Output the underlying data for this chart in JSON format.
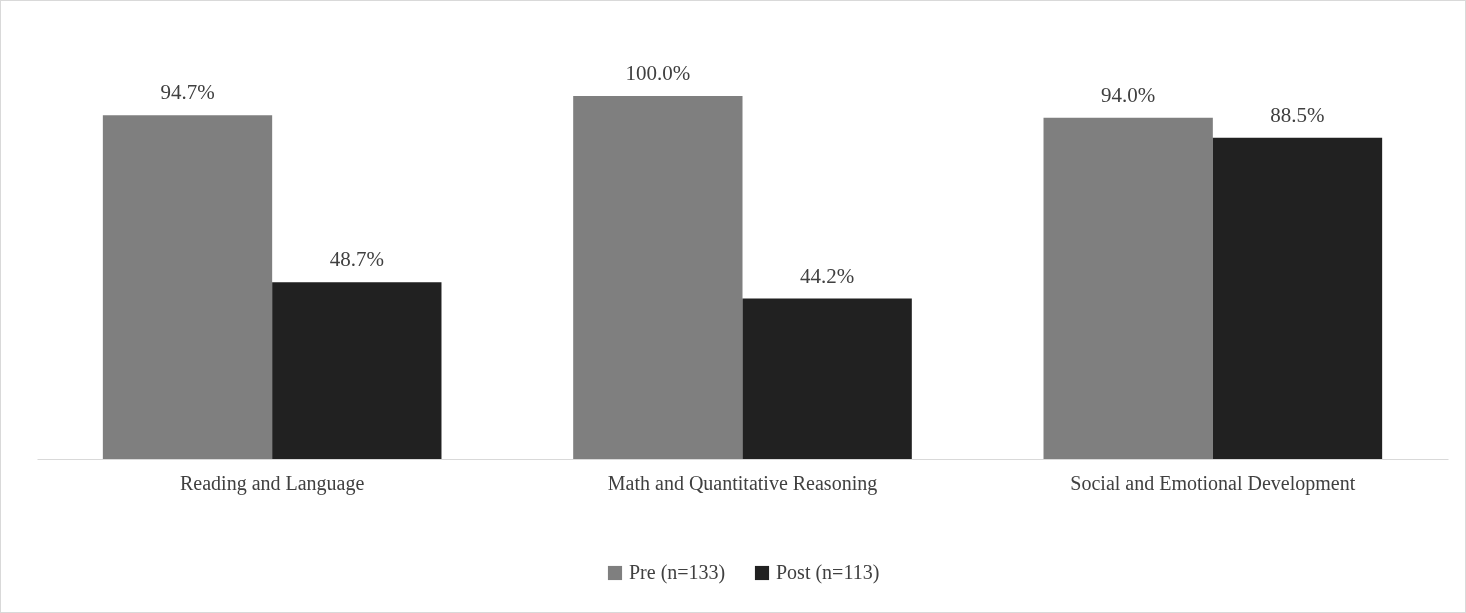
{
  "chart_data": {
    "type": "bar",
    "categories": [
      "Reading and Language",
      "Math and Quantitative Reasoning",
      "Social and Emotional Development"
    ],
    "series": [
      {
        "name": "Pre (n=133)",
        "color": "#7f7f7f",
        "values": [
          94.7,
          100.0,
          94.0
        ],
        "value_labels": [
          "94.7%",
          "100.0%",
          "94.0%"
        ]
      },
      {
        "name": "Post (n=113)",
        "color": "#212121",
        "values": [
          48.7,
          44.2,
          88.5
        ],
        "value_labels": [
          "48.7%",
          "44.2%",
          "88.5%"
        ]
      }
    ],
    "grid": false,
    "legend": "bottom"
  }
}
